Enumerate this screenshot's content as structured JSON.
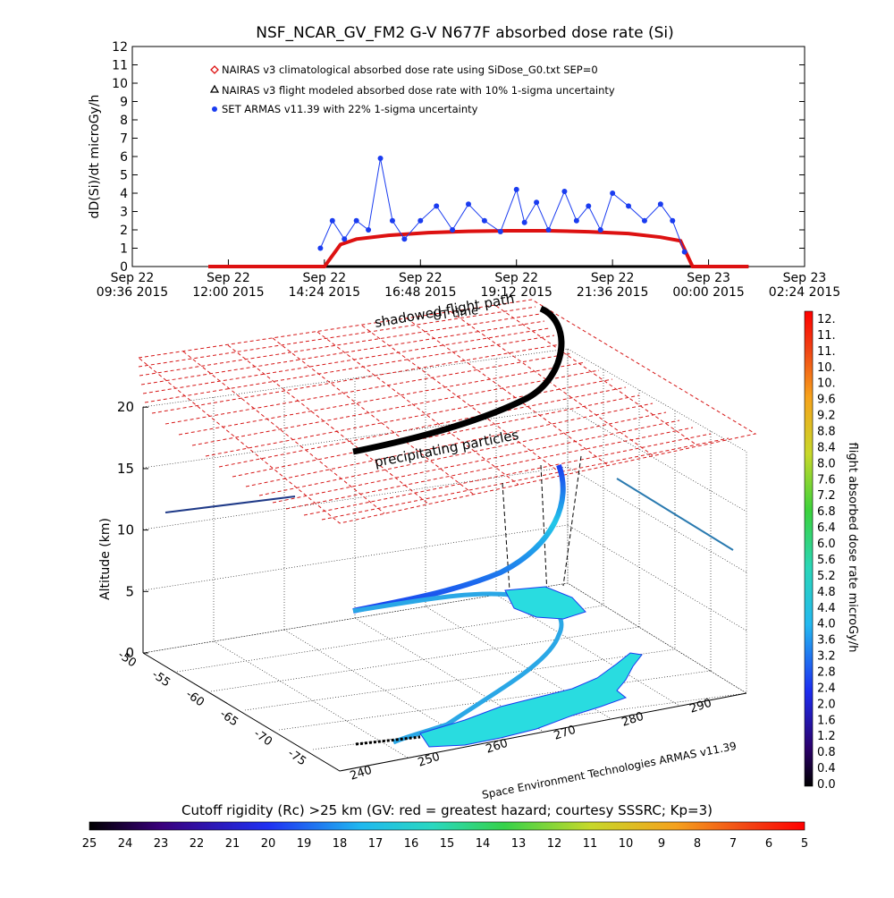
{
  "title": "NSF_NCAR_GV_FM2 G-V     N677F  absorbed dose rate (Si)",
  "chart_data": [
    {
      "type": "scatter",
      "ylabel": "dD(Si)/dt microGy/h",
      "ylim": [
        0,
        12
      ],
      "yticks": [
        0,
        1,
        2,
        3,
        4,
        5,
        6,
        7,
        8,
        9,
        10,
        11,
        12
      ],
      "xlim_hours": [
        9.6,
        26.4
      ],
      "xticks": [
        {
          "h": 9.6,
          "line1": "Sep 22",
          "line2": "09:36 2015"
        },
        {
          "h": 12.0,
          "line1": "Sep 22",
          "line2": "12:00 2015"
        },
        {
          "h": 14.4,
          "line1": "Sep 22",
          "line2": "14:24 2015"
        },
        {
          "h": 16.8,
          "line1": "Sep 22",
          "line2": "16:48 2015"
        },
        {
          "h": 19.2,
          "line1": "Sep 22",
          "line2": "19:12 2015"
        },
        {
          "h": 21.6,
          "line1": "Sep 22",
          "line2": "21:36 2015"
        },
        {
          "h": 24.0,
          "line1": "Sep 23",
          "line2": "00:00 2015"
        },
        {
          "h": 26.4,
          "line1": "Sep 23",
          "line2": "02:24 2015"
        }
      ],
      "series": [
        {
          "name": "NAIRAS v3 climatological absorbed dose rate using SiDose_G0.txt SEP=0",
          "color": "#dd1111",
          "marker": "diamond",
          "x": [
            11.5,
            14.4,
            14.8,
            15.2,
            16.0,
            17.0,
            18.0,
            19.0,
            20.0,
            21.0,
            22.0,
            22.8,
            23.3,
            23.6,
            25.0
          ],
          "y": [
            0.0,
            0.0,
            1.2,
            1.5,
            1.7,
            1.85,
            1.92,
            1.95,
            1.95,
            1.9,
            1.8,
            1.6,
            1.4,
            0.0,
            0.0
          ]
        },
        {
          "name": "NAIRAS v3 flight modeled absorbed dose rate with 10% 1-sigma uncertainty",
          "color": "#000000",
          "marker": "triangle",
          "x": [
            11.5,
            25.0
          ],
          "y": [
            0.0,
            0.0
          ]
        },
        {
          "name": "SET ARMAS v11.39 with 22% 1-sigma uncertainty",
          "color": "#1a3cf0",
          "marker": "dot",
          "x": [
            14.3,
            14.6,
            14.9,
            15.2,
            15.5,
            15.8,
            16.1,
            16.4,
            16.8,
            17.2,
            17.6,
            18.0,
            18.4,
            18.8,
            19.2,
            19.4,
            19.7,
            20.0,
            20.4,
            20.7,
            21.0,
            21.3,
            21.6,
            22.0,
            22.4,
            22.8,
            23.1,
            23.4
          ],
          "y": [
            1.0,
            2.5,
            1.5,
            2.5,
            2.0,
            5.9,
            2.5,
            1.5,
            2.5,
            3.3,
            2.0,
            3.4,
            2.5,
            1.9,
            4.2,
            2.4,
            3.5,
            2.0,
            4.1,
            2.5,
            3.3,
            2.0,
            4.0,
            3.3,
            2.5,
            3.4,
            2.5,
            0.8
          ]
        }
      ]
    },
    {
      "type": "scatter3d",
      "zlabel": "Altitude (km)",
      "zticks": [
        0,
        5,
        10,
        15,
        20
      ],
      "lat_ticks": [
        -50,
        -55,
        -60,
        -65,
        -70,
        -75
      ],
      "lon_ticks": [
        240,
        250,
        260,
        270,
        280,
        290
      ],
      "annotations": [
        "shadowed flight path",
        "UT time",
        "precipitating particles"
      ],
      "credit": "Space Environment Technologies ARMAS v11.39",
      "colorbar": {
        "label": "flight absorbed dose rate microGy/h",
        "ticks": [
          "12.",
          "11.",
          "11.",
          "10.",
          "10.",
          "9.6",
          "9.2",
          "8.8",
          "8.4",
          "8.0",
          "7.6",
          "7.2",
          "6.8",
          "6.4",
          "6.0",
          "5.6",
          "5.2",
          "4.8",
          "4.4",
          "4.0",
          "3.6",
          "3.2",
          "2.8",
          "2.4",
          "2.0",
          "1.6",
          "1.2",
          "0.8",
          "0.4",
          "0.0"
        ]
      },
      "rigidity_bar": {
        "label": "Cutoff rigidity (Rc) >25 km (GV: red = greatest hazard; courtesy SSSRC; Kp=3)",
        "ticks": [
          "25",
          "24",
          "23",
          "22",
          "21",
          "20",
          "19",
          "18",
          "17",
          "16",
          "15",
          "14",
          "13",
          "12",
          "11",
          "10",
          "9",
          "8",
          "7",
          "6",
          "5"
        ]
      }
    }
  ]
}
